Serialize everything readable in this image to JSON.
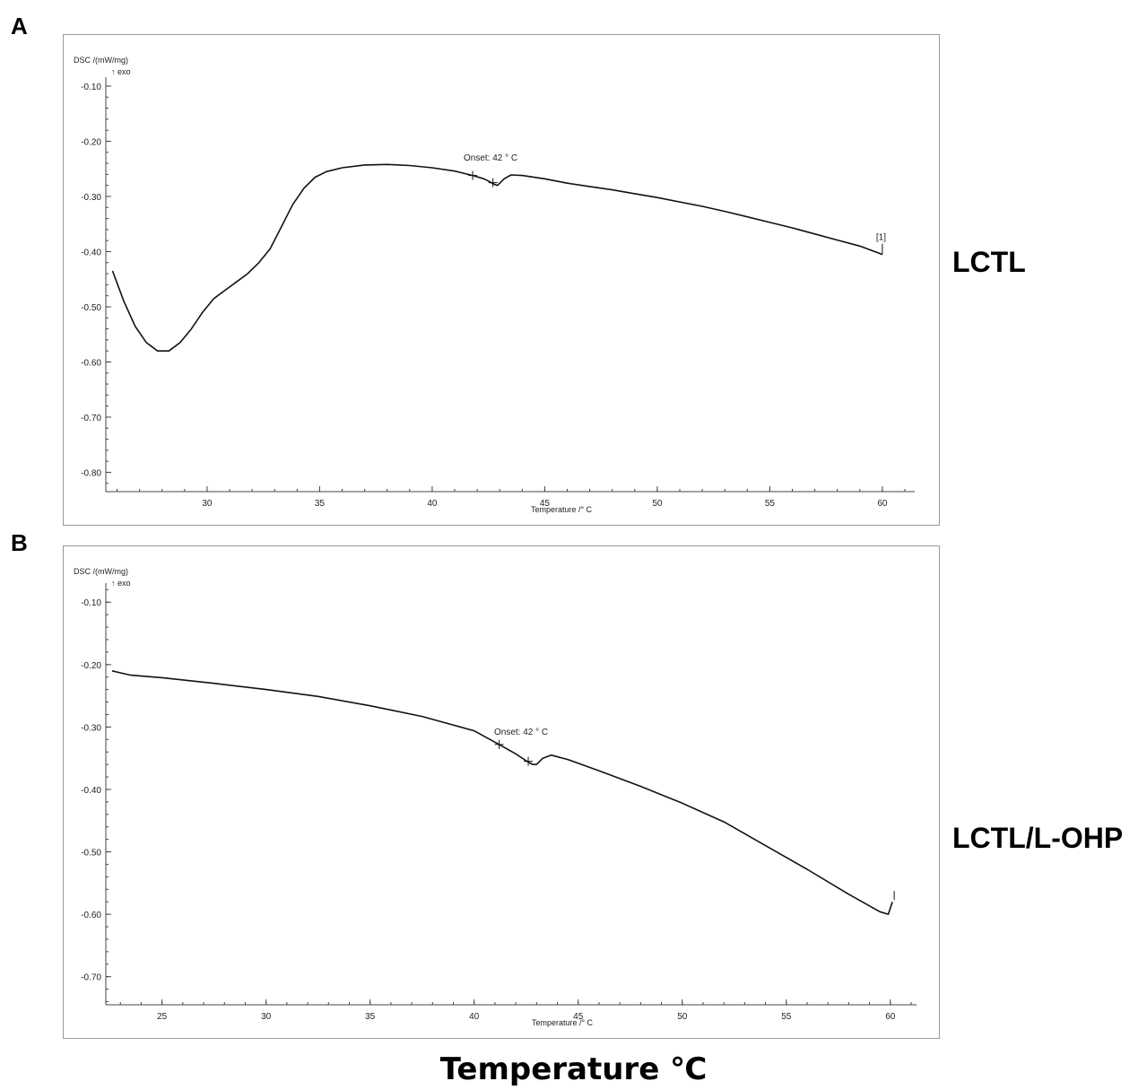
{
  "panel_a_letter": "A",
  "panel_b_letter": "B",
  "sample_a": "LCTL",
  "sample_b": "LCTL/L-OHP",
  "figure_xlabel": "Temperature ℃",
  "chart_data": [
    {
      "type": "line",
      "ylabel": "DSC /(mW/mg)",
      "ylabel2": "↑  exo",
      "xlabel": "Temperature /° C",
      "xlim": [
        25.5,
        61.2
      ],
      "ylim": [
        -0.835,
        -0.035
      ],
      "xticks": [
        30,
        35,
        40,
        45,
        50,
        55,
        60
      ],
      "yticks": [
        -0.1,
        -0.2,
        -0.3,
        -0.4,
        -0.5,
        -0.6,
        -0.7,
        -0.8
      ],
      "annotation": "Onset: 42    ° C",
      "end_marker": "[1]",
      "onset_markers": [
        [
          41.8,
          -0.262
        ],
        [
          42.7,
          -0.275
        ]
      ],
      "x": [
        25.8,
        26.3,
        26.8,
        27.3,
        27.8,
        28.3,
        28.8,
        29.3,
        29.8,
        30.3,
        30.8,
        31.3,
        31.8,
        32.3,
        32.8,
        33.3,
        33.8,
        34.3,
        34.8,
        35.3,
        36.0,
        37.0,
        38.0,
        39.0,
        40.0,
        41.0,
        41.8,
        42.3,
        42.5,
        42.7,
        42.9,
        43.2,
        43.5,
        44.0,
        45.0,
        46.0,
        47.0,
        48.0,
        49.0,
        50.0,
        51.0,
        52.0,
        53.0,
        54.0,
        55.0,
        56.0,
        57.0,
        58.0,
        59.0,
        60.0
      ],
      "y": [
        -0.435,
        -0.49,
        -0.535,
        -0.565,
        -0.58,
        -0.58,
        -0.565,
        -0.54,
        -0.51,
        -0.485,
        -0.47,
        -0.455,
        -0.44,
        -0.42,
        -0.395,
        -0.355,
        -0.315,
        -0.285,
        -0.265,
        -0.255,
        -0.248,
        -0.243,
        -0.242,
        -0.244,
        -0.248,
        -0.254,
        -0.262,
        -0.268,
        -0.272,
        -0.277,
        -0.28,
        -0.268,
        -0.261,
        -0.262,
        -0.268,
        -0.276,
        -0.282,
        -0.288,
        -0.295,
        -0.302,
        -0.31,
        -0.318,
        -0.327,
        -0.337,
        -0.347,
        -0.357,
        -0.368,
        -0.379,
        -0.39,
        -0.405
      ]
    },
    {
      "type": "line",
      "ylabel": "DSC /(mW/mg)",
      "ylabel2": "↑  exo",
      "xlabel": "Temperature /° C",
      "xlim": [
        22.3,
        61.0
      ],
      "ylim": [
        -0.745,
        -0.035
      ],
      "xticks": [
        25,
        30,
        35,
        40,
        45,
        50,
        55,
        60
      ],
      "yticks": [
        -0.1,
        -0.2,
        -0.3,
        -0.4,
        -0.5,
        -0.6,
        -0.7
      ],
      "annotation": "Onset: 42    ° C",
      "onset_markers": [
        [
          41.2,
          -0.328
        ],
        [
          42.6,
          -0.355
        ]
      ],
      "x": [
        22.6,
        23.5,
        25.0,
        27.5,
        30.0,
        32.5,
        35.0,
        37.5,
        40.0,
        41.2,
        42.0,
        42.5,
        42.8,
        43.0,
        43.3,
        43.7,
        44.5,
        46.0,
        48.0,
        50.0,
        52.0,
        54.0,
        56.0,
        58.0,
        59.5,
        59.9,
        60.1
      ],
      "y": [
        -0.21,
        -0.217,
        -0.221,
        -0.23,
        -0.24,
        -0.251,
        -0.266,
        -0.283,
        -0.306,
        -0.328,
        -0.343,
        -0.354,
        -0.36,
        -0.36,
        -0.35,
        -0.345,
        -0.352,
        -0.37,
        -0.395,
        -0.422,
        -0.452,
        -0.49,
        -0.528,
        -0.568,
        -0.596,
        -0.6,
        -0.58
      ]
    }
  ]
}
